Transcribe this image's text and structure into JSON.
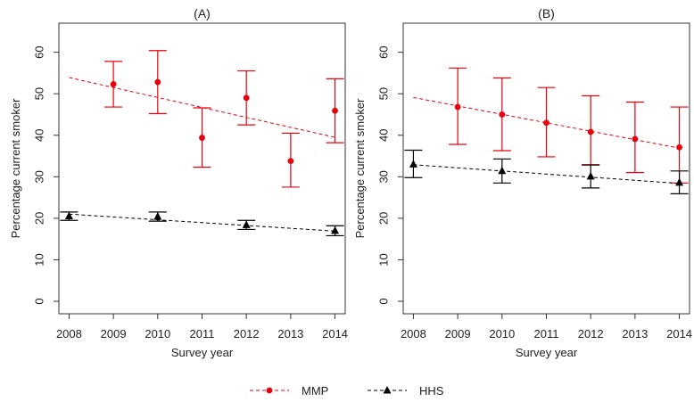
{
  "chart_data": [
    {
      "type": "scatter",
      "title": "(A)",
      "xlabel": "Survey year",
      "ylabel": "Percentage current smoker",
      "x": [
        2008,
        2009,
        2010,
        2011,
        2012,
        2013,
        2014
      ],
      "xticks": [
        "2008",
        "2009",
        "2010",
        "2011",
        "2012",
        "2013",
        "2014"
      ],
      "yticks": [
        "0",
        "10",
        "20",
        "30",
        "40",
        "50",
        "60"
      ],
      "ylim": [
        -3,
        67
      ],
      "grid": false,
      "series": [
        {
          "name": "MMP",
          "color": "#e8000b",
          "marker": "circle",
          "points": [
            {
              "x": 2009,
              "y": 52.3,
              "lower": 46.8,
              "upper": 57.8
            },
            {
              "x": 2010,
              "y": 52.8,
              "lower": 45.2,
              "upper": 60.4
            },
            {
              "x": 2011,
              "y": 39.4,
              "lower": 32.3,
              "upper": 46.6
            },
            {
              "x": 2012,
              "y": 49.0,
              "lower": 42.5,
              "upper": 55.5
            },
            {
              "x": 2013,
              "y": 33.8,
              "lower": 27.5,
              "upper": 40.5
            },
            {
              "x": 2014,
              "y": 45.9,
              "lower": 38.2,
              "upper": 53.6
            }
          ],
          "trend": {
            "x_start": 2008,
            "y_start": 53.9,
            "x_end": 2014,
            "y_end": 39.5
          }
        },
        {
          "name": "HHS",
          "color": "#000000",
          "marker": "triangle",
          "points": [
            {
              "x": 2008,
              "y": 20.5,
              "lower": 19.5,
              "upper": 21.5
            },
            {
              "x": 2010,
              "y": 20.4,
              "lower": 19.3,
              "upper": 21.5
            },
            {
              "x": 2012,
              "y": 18.4,
              "lower": 17.3,
              "upper": 19.5
            },
            {
              "x": 2014,
              "y": 17.0,
              "lower": 15.8,
              "upper": 18.2
            }
          ],
          "trend": {
            "x_start": 2008,
            "y_start": 21.0,
            "x_end": 2014,
            "y_end": 16.9
          }
        }
      ]
    },
    {
      "type": "scatter",
      "title": "(B)",
      "xlabel": "Survey year",
      "ylabel": "Percentage current smoker",
      "x": [
        2008,
        2009,
        2010,
        2011,
        2012,
        2013,
        2014
      ],
      "xticks": [
        "2008",
        "2009",
        "2010",
        "2011",
        "2012",
        "2013",
        "2014"
      ],
      "yticks": [
        "0",
        "10",
        "20",
        "30",
        "40",
        "50",
        "60"
      ],
      "ylim": [
        -3,
        67
      ],
      "grid": false,
      "series": [
        {
          "name": "MMP",
          "color": "#e8000b",
          "marker": "circle",
          "points": [
            {
              "x": 2009,
              "y": 46.8,
              "lower": 37.8,
              "upper": 56.2
            },
            {
              "x": 2010,
              "y": 45.0,
              "lower": 36.3,
              "upper": 53.8
            },
            {
              "x": 2011,
              "y": 43.0,
              "lower": 34.8,
              "upper": 51.5
            },
            {
              "x": 2012,
              "y": 40.8,
              "lower": 32.8,
              "upper": 49.5
            },
            {
              "x": 2013,
              "y": 39.1,
              "lower": 31.0,
              "upper": 48.0
            },
            {
              "x": 2014,
              "y": 37.1,
              "lower": 28.5,
              "upper": 46.8
            }
          ],
          "trend": {
            "x_start": 2008,
            "y_start": 49.1,
            "x_end": 2014,
            "y_end": 36.9
          }
        },
        {
          "name": "HHS",
          "color": "#000000",
          "marker": "triangle",
          "points": [
            {
              "x": 2008,
              "y": 33.0,
              "lower": 29.8,
              "upper": 36.4
            },
            {
              "x": 2010,
              "y": 31.4,
              "lower": 28.5,
              "upper": 34.3
            },
            {
              "x": 2012,
              "y": 30.1,
              "lower": 27.3,
              "upper": 32.9
            },
            {
              "x": 2014,
              "y": 28.6,
              "lower": 25.9,
              "upper": 31.4
            }
          ],
          "trend": {
            "x_start": 2008,
            "y_start": 32.9,
            "x_end": 2014,
            "y_end": 28.4
          }
        }
      ]
    }
  ],
  "legend": {
    "placement": "bottom-center",
    "items": [
      {
        "label": "MMP",
        "color": "#e8000b",
        "marker": "circle"
      },
      {
        "label": "HHS",
        "color": "#000000",
        "marker": "triangle"
      }
    ]
  }
}
